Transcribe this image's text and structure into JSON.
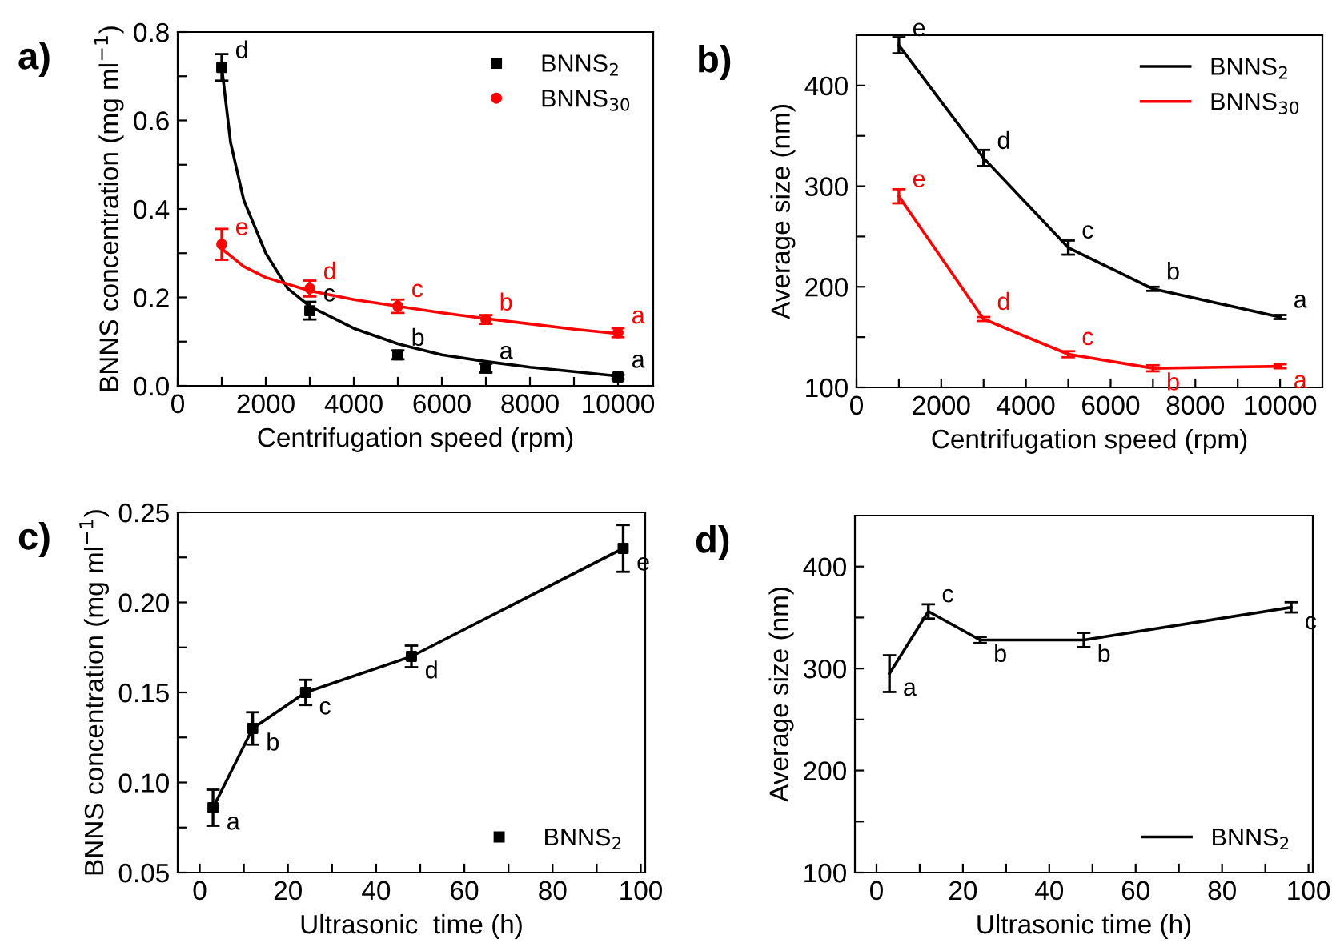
{
  "chart_data": [
    {
      "type": "scatter",
      "title": "a)",
      "xlabel": "Centrifugation speed (rpm)",
      "ylabel": "BNNS concentration (mg ml$^{−1}$)",
      "xlim": [
        0,
        10800
      ],
      "ylim": [
        0,
        0.8
      ],
      "xticks": [
        0,
        {
          "value": 1000,
          "label": null
        },
        2000,
        {
          "value": 3000,
          "label": null
        },
        4000,
        {
          "value": 5000,
          "label": null
        },
        6000,
        {
          "value": 7000,
          "label": null
        },
        8000,
        {
          "value": 9000,
          "label": null
        },
        10000
      ],
      "yticks": [
        {
          "value": 0,
          "label": "0.0"
        },
        {
          "value": 0.1,
          "label": null
        },
        {
          "value": 0.2,
          "label": "0.2"
        },
        {
          "value": 0.3,
          "label": null
        },
        {
          "value": 0.4,
          "label": "0.4"
        },
        {
          "value": 0.5,
          "label": null
        },
        {
          "value": 0.6,
          "label": "0.6"
        },
        {
          "value": 0.7,
          "label": null
        },
        {
          "value": 0.8,
          "label": "0.8"
        }
      ],
      "legend": "top right",
      "grid": false,
      "series": [
        {
          "name": "BNNS$_{2}$",
          "marker": "square",
          "color": "#000000",
          "x": [
            1000,
            3000,
            5000,
            7000,
            10000
          ],
          "values": [
            0.72,
            0.17,
            0.07,
            0.04,
            0.02
          ],
          "errors": [
            0.03,
            0.02,
            0.01,
            0.01,
            0.005
          ],
          "value_labels": [
            "d",
            "c",
            "b",
            "a",
            "a"
          ]
        },
        {
          "name": "BNNS$_{30}$",
          "marker": "circle",
          "color": "#ff0000",
          "x": [
            1000,
            3000,
            5000,
            7000,
            10000
          ],
          "values": [
            0.32,
            0.22,
            0.18,
            0.15,
            0.12
          ],
          "errors": [
            0.035,
            0.018,
            0.015,
            0.01,
            0.01
          ],
          "value_labels": [
            "e",
            "d",
            "c",
            "b",
            "a"
          ]
        },
        {
          "type": "line",
          "color": "#000000",
          "x": [
            1000,
            1200,
            1500,
            2000,
            2500,
            3000,
            4000,
            5000,
            6000,
            7000,
            8000,
            9000,
            10000
          ],
          "values": [
            0.72,
            0.55,
            0.42,
            0.3,
            0.22,
            0.18,
            0.13,
            0.095,
            0.07,
            0.055,
            0.042,
            0.032,
            0.022
          ]
        },
        {
          "type": "line",
          "color": "#ff0000",
          "x": [
            1000,
            1500,
            2000,
            3000,
            4000,
            5000,
            6000,
            7000,
            8000,
            9000,
            10000
          ],
          "values": [
            0.31,
            0.27,
            0.245,
            0.215,
            0.195,
            0.18,
            0.165,
            0.152,
            0.14,
            0.128,
            0.118
          ]
        }
      ]
    },
    {
      "type": "line",
      "title": "b)",
      "xlabel": "Centrifugation speed (rpm)",
      "ylabel": "Average size (nm)",
      "xlim": [
        0,
        11000
      ],
      "ylim": [
        100,
        450
      ],
      "xticks": [
        0,
        {
          "value": 1000,
          "label": null
        },
        2000,
        {
          "value": 3000,
          "label": null
        },
        4000,
        {
          "value": 5000,
          "label": null
        },
        6000,
        {
          "value": 7000,
          "label": null
        },
        8000,
        {
          "value": 9000,
          "label": null
        },
        10000
      ],
      "yticks": [
        100,
        {
          "value": 150,
          "label": null
        },
        200,
        {
          "value": 250,
          "label": null
        },
        300,
        {
          "value": 350,
          "label": null
        },
        400
      ],
      "legend": "top right",
      "grid": false,
      "series": [
        {
          "name": "BNNS$_{2}$",
          "marker": "none",
          "color": "#000000",
          "x": [
            1000,
            3000,
            5000,
            7000,
            10000
          ],
          "values": [
            440,
            328,
            239,
            198,
            170
          ],
          "errors": [
            8,
            8,
            7,
            2,
            2
          ],
          "value_labels": [
            "e",
            "d",
            "c",
            "b",
            "a"
          ]
        },
        {
          "name": "BNNS$_{30}$",
          "marker": "none",
          "color": "#ff0000",
          "x": [
            1000,
            3000,
            5000,
            7000,
            10000
          ],
          "values": [
            290,
            168,
            133,
            119,
            121
          ],
          "errors": [
            7,
            2,
            3,
            3,
            2
          ],
          "value_labels": [
            "e",
            "d",
            "c",
            "b",
            "a"
          ]
        }
      ]
    },
    {
      "type": "scatter",
      "title": "c)",
      "xlabel": "Ultrasonic  time (h)",
      "ylabel": "BNNS concentration (mg ml$^{−1}$)",
      "xlim": [
        -5,
        101
      ],
      "ylim": [
        0.05,
        0.25
      ],
      "xticks": [
        0,
        {
          "value": 10,
          "label": null
        },
        20,
        {
          "value": 30,
          "label": null
        },
        40,
        {
          "value": 50,
          "label": null
        },
        60,
        {
          "value": 70,
          "label": null
        },
        80,
        {
          "value": 90,
          "label": null
        },
        100
      ],
      "yticks": [
        {
          "value": 0.05,
          "label": "0.05"
        },
        {
          "value": 0.075,
          "label": null
        },
        {
          "value": 0.1,
          "label": "0.10"
        },
        {
          "value": 0.125,
          "label": null
        },
        {
          "value": 0.15,
          "label": "0.15"
        },
        {
          "value": 0.175,
          "label": null
        },
        {
          "value": 0.2,
          "label": "0.20"
        },
        {
          "value": 0.225,
          "label": null
        },
        {
          "value": 0.25,
          "label": "0.25"
        }
      ],
      "legend": "bottom right",
      "grid": false,
      "series": [
        {
          "name": "BNNS$_{2}$",
          "marker": "square",
          "color": "#000000",
          "x": [
            3,
            12,
            24,
            48,
            96
          ],
          "values": [
            0.086,
            0.13,
            0.15,
            0.17,
            0.23
          ],
          "errors": [
            0.01,
            0.009,
            0.007,
            0.006,
            0.013
          ],
          "value_labels": [
            "a",
            "b",
            "c",
            "d",
            "e"
          ]
        },
        {
          "type": "line",
          "color": "#000000",
          "x": [
            3,
            12,
            24,
            48,
            96
          ],
          "values": [
            0.086,
            0.13,
            0.15,
            0.17,
            0.23
          ]
        }
      ]
    },
    {
      "type": "line",
      "title": "d)",
      "xlabel": "Ultrasonic time (h)",
      "ylabel": "Average size (nm)",
      "xlim": [
        -5,
        101
      ],
      "ylim": [
        100,
        450
      ],
      "xticks": [
        0,
        {
          "value": 10,
          "label": null
        },
        20,
        {
          "value": 30,
          "label": null
        },
        40,
        {
          "value": 50,
          "label": null
        },
        60,
        {
          "value": 70,
          "label": null
        },
        80,
        {
          "value": 90,
          "label": null
        },
        100
      ],
      "yticks": [
        100,
        {
          "value": 150,
          "label": null
        },
        200,
        {
          "value": 250,
          "label": null
        },
        300,
        {
          "value": 350,
          "label": null
        },
        400
      ],
      "legend": "bottom right",
      "grid": false,
      "series": [
        {
          "name": "BNNS$_{2}$",
          "marker": "none",
          "color": "#000000",
          "x": [
            3,
            12,
            24,
            48,
            96
          ],
          "values": [
            295,
            356,
            328,
            328,
            360
          ],
          "errors": [
            18,
            7,
            3,
            7,
            5
          ],
          "value_labels": [
            "a",
            "c",
            "b",
            "b",
            "c"
          ]
        }
      ]
    }
  ]
}
